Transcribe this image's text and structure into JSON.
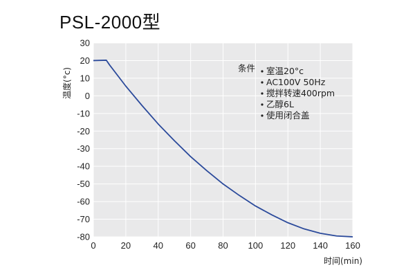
{
  "page": {
    "title": "PSL-2000型"
  },
  "chart_data": {
    "type": "line",
    "title": "PSL-2000型",
    "xlabel": "时间(min)",
    "ylabel": "温度(°c)",
    "xlim": [
      0,
      160
    ],
    "ylim": [
      -80,
      30
    ],
    "x_ticks": [
      0,
      20,
      40,
      60,
      80,
      100,
      120,
      140,
      160
    ],
    "y_ticks": [
      30,
      20,
      10,
      0,
      -10,
      -20,
      -30,
      -40,
      -50,
      -60,
      -70,
      -80
    ],
    "grid": true,
    "series": [
      {
        "color": "#2b4a9b",
        "x": [
          0,
          8,
          10,
          20,
          30,
          40,
          50,
          60,
          70,
          80,
          90,
          100,
          110,
          120,
          130,
          140,
          150,
          160
        ],
        "y": [
          20,
          20.2,
          17.5,
          5.5,
          -5.5,
          -16,
          -25.5,
          -34.5,
          -42.5,
          -50,
          -56.5,
          -62.5,
          -67.5,
          -72,
          -75.5,
          -78,
          -79.5,
          -80
        ]
      }
    ],
    "annotation": {
      "heading": "条件",
      "items": [
        "室温20°c",
        "AC100V 50Hz",
        "搅拌转速400rpm",
        "乙醇6L",
        "使用闭合盖"
      ]
    }
  }
}
